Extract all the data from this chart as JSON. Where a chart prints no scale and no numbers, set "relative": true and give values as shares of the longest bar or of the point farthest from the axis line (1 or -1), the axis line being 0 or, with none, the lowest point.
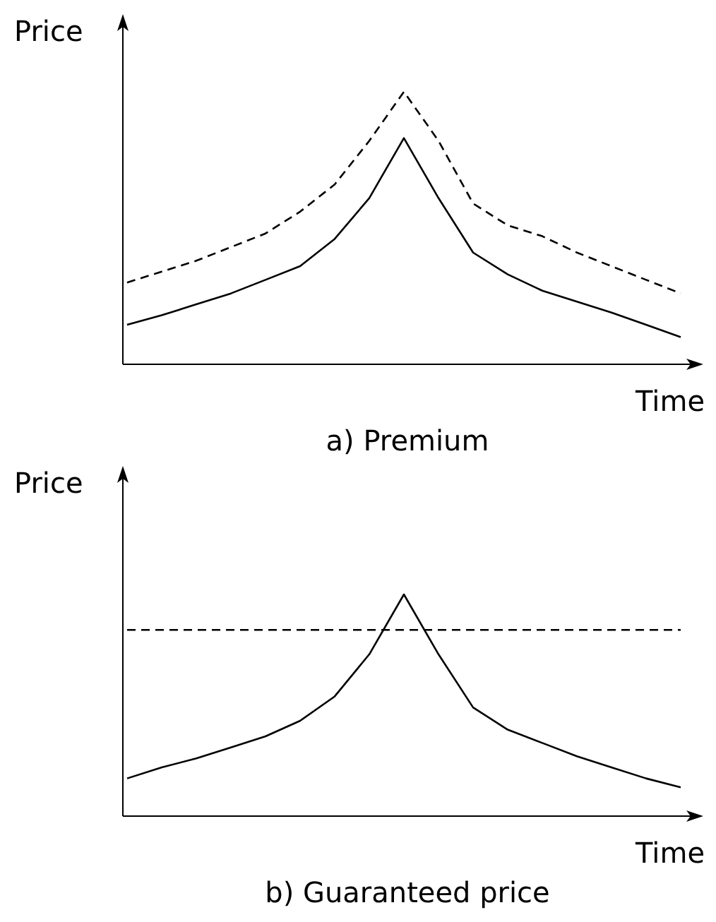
{
  "chart_data": [
    {
      "type": "line",
      "title": "a) Premium",
      "xlabel": "Time",
      "ylabel": "Price",
      "relative": true,
      "marker": "none",
      "categories": [
        null,
        null,
        null,
        null,
        null,
        null,
        null,
        null,
        null,
        null,
        null,
        null,
        null,
        null,
        null,
        null,
        null
      ],
      "series": [
        {
          "color": "#000000",
          "line_style": "dashed",
          "values": [
            0.3,
            0.34,
            0.38,
            0.43,
            0.48,
            0.56,
            0.66,
            0.82,
            1,
            0.82,
            0.59,
            0.51,
            0.47,
            0.41,
            0.36,
            0.31,
            0.26
          ]
        },
        {
          "color": "#000000",
          "line_style": "solid",
          "values": [
            0.145,
            0.18,
            0.22,
            0.26,
            0.31,
            0.36,
            0.46,
            0.61,
            0.83,
            0.61,
            0.41,
            0.33,
            0.27,
            0.23,
            0.19,
            0.145,
            0.1
          ]
        }
      ]
    },
    {
      "type": "line",
      "title": "b) Guaranteed price",
      "xlabel": "Time",
      "ylabel": "Price",
      "relative": true,
      "marker": "none",
      "categories": [
        null,
        null,
        null,
        null,
        null,
        null,
        null,
        null,
        null,
        null,
        null,
        null,
        null,
        null,
        null,
        null,
        null
      ],
      "series": [
        {
          "color": "#000000",
          "line_style": "dashed",
          "values": [
            0.84,
            0.84,
            0.84,
            0.84,
            0.84,
            0.84,
            0.84,
            0.84,
            0.84,
            0.84,
            0.84,
            0.84,
            0.84,
            0.84,
            0.84,
            0.84,
            0.84
          ]
        },
        {
          "color": "#000000",
          "line_style": "solid",
          "values": [
            0.17,
            0.22,
            0.26,
            0.31,
            0.36,
            0.43,
            0.54,
            0.73,
            1,
            0.73,
            0.49,
            0.39,
            0.33,
            0.27,
            0.22,
            0.17,
            0.13
          ]
        }
      ]
    }
  ]
}
